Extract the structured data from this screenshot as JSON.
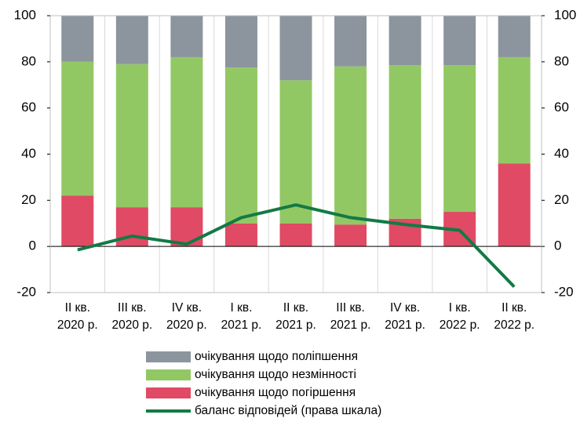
{
  "chart_data": {
    "type": "stacked_bar_line",
    "categories": [
      "II кв. 2020 р.",
      "III кв. 2020 р.",
      "IV кв. 2020 р.",
      "I кв. 2021 р.",
      "II кв. 2021 р.",
      "III кв. 2021 р.",
      "IV кв. 2021 р.",
      "I кв. 2022 р.",
      "II кв. 2022 р."
    ],
    "series": [
      {
        "name": "очікування щодо поліпшення",
        "type": "bar",
        "color": "#8c959d",
        "values": [
          20,
          21,
          18,
          22.5,
          28,
          22,
          21.5,
          21.5,
          18
        ]
      },
      {
        "name": "очікування щодо незмінності",
        "type": "bar",
        "color": "#92c864",
        "values": [
          58,
          62,
          65,
          67.5,
          62,
          68.5,
          66.5,
          63.5,
          46
        ]
      },
      {
        "name": "очікування щодо погіршення",
        "type": "bar",
        "color": "#e04a64",
        "values": [
          22,
          17,
          17,
          10,
          10,
          9.5,
          12,
          15,
          36
        ]
      },
      {
        "name": "баланс відповідей (права шкала)",
        "type": "line",
        "axis": "y2",
        "color": "#127a45",
        "values": [
          -1.5,
          4.5,
          1,
          12.5,
          18,
          12.5,
          9.5,
          7,
          -17.5
        ]
      }
    ],
    "ylim": [
      -20,
      100
    ],
    "yticks": [
      -20,
      0,
      20,
      40,
      60,
      80,
      100
    ],
    "y2lim": [
      -20,
      100
    ],
    "y2ticks": [
      -20,
      0,
      20,
      40,
      60,
      80,
      100
    ]
  }
}
